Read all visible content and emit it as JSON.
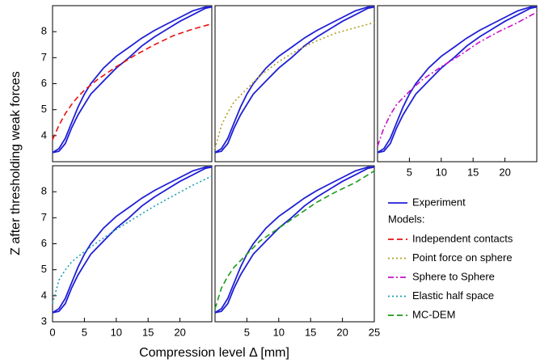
{
  "ylabel": "Z after thresholding weak forces",
  "xlabel": "Compression level Δ [mm]",
  "legend_heading": "Models:",
  "chart_data": [
    {
      "type": "line",
      "xlim": [
        0,
        25
      ],
      "ylim": [
        3,
        9
      ],
      "yticks": [
        4,
        5,
        6,
        7,
        8
      ],
      "series": [
        {
          "name": "Experiment",
          "color": "#1f1fd6",
          "style": "solid",
          "x": [
            0,
            1,
            2,
            3,
            4,
            5,
            6,
            8,
            10,
            12,
            14,
            16,
            18,
            20,
            22,
            24,
            25,
            24,
            22,
            20,
            18,
            16,
            14,
            12,
            10,
            8,
            6,
            5,
            4,
            3,
            2,
            1,
            0
          ],
          "values": [
            3.35,
            3.4,
            3.7,
            4.3,
            4.8,
            5.2,
            5.6,
            6.1,
            6.6,
            7.0,
            7.45,
            7.8,
            8.1,
            8.4,
            8.65,
            8.9,
            8.95,
            8.95,
            8.8,
            8.55,
            8.3,
            8.05,
            7.75,
            7.4,
            7.05,
            6.6,
            6.0,
            5.6,
            5.1,
            4.5,
            3.9,
            3.5,
            3.35
          ]
        },
        {
          "name": "Independent contacts",
          "color": "#e81010",
          "style": "dashed",
          "x": [
            0,
            1,
            2,
            3,
            4,
            5,
            7,
            10,
            13,
            16,
            19,
            22,
            25
          ],
          "values": [
            3.85,
            4.4,
            4.85,
            5.2,
            5.5,
            5.75,
            6.15,
            6.65,
            7.1,
            7.5,
            7.85,
            8.1,
            8.3
          ]
        }
      ]
    },
    {
      "type": "line",
      "xlim": [
        0,
        25
      ],
      "ylim": [
        3,
        9
      ],
      "series": [
        {
          "name": "Experiment",
          "color": "#1f1fd6",
          "style": "solid",
          "x": [
            0,
            1,
            2,
            3,
            4,
            5,
            6,
            8,
            10,
            12,
            14,
            16,
            18,
            20,
            22,
            24,
            25,
            24,
            22,
            20,
            18,
            16,
            14,
            12,
            10,
            8,
            6,
            5,
            4,
            3,
            2,
            1,
            0
          ],
          "values": [
            3.35,
            3.4,
            3.7,
            4.3,
            4.8,
            5.2,
            5.6,
            6.1,
            6.6,
            7.0,
            7.45,
            7.8,
            8.1,
            8.4,
            8.65,
            8.9,
            8.95,
            8.95,
            8.8,
            8.55,
            8.3,
            8.05,
            7.75,
            7.4,
            7.05,
            6.6,
            6.0,
            5.6,
            5.1,
            4.5,
            3.9,
            3.5,
            3.35
          ]
        },
        {
          "name": "Point force on sphere",
          "color": "#b0a020",
          "style": "dotted",
          "x": [
            0,
            1,
            2,
            3,
            5,
            7,
            10,
            13,
            16,
            19,
            22,
            25
          ],
          "values": [
            3.5,
            4.4,
            4.9,
            5.3,
            5.8,
            6.3,
            6.85,
            7.3,
            7.65,
            7.95,
            8.15,
            8.35
          ]
        }
      ]
    },
    {
      "type": "line",
      "xlim": [
        0,
        25
      ],
      "ylim": [
        3,
        9
      ],
      "xticks": [
        5,
        10,
        15,
        20
      ],
      "series": [
        {
          "name": "Experiment",
          "color": "#1f1fd6",
          "style": "solid",
          "x": [
            0,
            1,
            2,
            3,
            4,
            5,
            6,
            8,
            10,
            12,
            14,
            16,
            18,
            20,
            22,
            24,
            25,
            24,
            22,
            20,
            18,
            16,
            14,
            12,
            10,
            8,
            6,
            5,
            4,
            3,
            2,
            1,
            0
          ],
          "values": [
            3.35,
            3.4,
            3.7,
            4.3,
            4.8,
            5.2,
            5.6,
            6.1,
            6.6,
            7.0,
            7.45,
            7.8,
            8.1,
            8.4,
            8.65,
            8.9,
            8.95,
            8.95,
            8.8,
            8.55,
            8.3,
            8.05,
            7.75,
            7.4,
            7.05,
            6.6,
            6.0,
            5.6,
            5.1,
            4.5,
            3.9,
            3.5,
            3.35
          ]
        },
        {
          "name": "Sphere to Sphere",
          "color": "#c810c8",
          "style": "dashdot",
          "x": [
            0,
            1,
            2,
            3,
            5,
            7,
            10,
            13,
            16,
            19,
            22,
            25
          ],
          "values": [
            3.6,
            4.3,
            4.8,
            5.2,
            5.7,
            6.15,
            6.65,
            7.1,
            7.6,
            8.0,
            8.35,
            8.75
          ]
        }
      ]
    },
    {
      "type": "line",
      "xlim": [
        0,
        25
      ],
      "ylim": [
        3,
        9
      ],
      "xticks": [
        0,
        5,
        10,
        15,
        20
      ],
      "yticks": [
        3,
        4,
        5,
        6,
        7,
        8
      ],
      "series": [
        {
          "name": "Experiment",
          "color": "#1f1fd6",
          "style": "solid",
          "x": [
            0,
            1,
            2,
            3,
            4,
            5,
            6,
            8,
            10,
            12,
            14,
            16,
            18,
            20,
            22,
            24,
            25,
            24,
            22,
            20,
            18,
            16,
            14,
            12,
            10,
            8,
            6,
            5,
            4,
            3,
            2,
            1,
            0
          ],
          "values": [
            3.35,
            3.4,
            3.7,
            4.3,
            4.8,
            5.2,
            5.6,
            6.1,
            6.6,
            7.0,
            7.45,
            7.8,
            8.1,
            8.4,
            8.65,
            8.9,
            8.95,
            8.95,
            8.8,
            8.55,
            8.3,
            8.05,
            7.75,
            7.4,
            7.05,
            6.6,
            6.0,
            5.6,
            5.1,
            4.5,
            3.9,
            3.5,
            3.35
          ]
        },
        {
          "name": "Elastic half space",
          "color": "#1aa0b4",
          "style": "dotted",
          "x": [
            0,
            1,
            2,
            3,
            5,
            7,
            10,
            13,
            16,
            19,
            22,
            25
          ],
          "values": [
            3.7,
            4.6,
            5.0,
            5.3,
            5.7,
            6.05,
            6.55,
            7.0,
            7.45,
            7.85,
            8.25,
            8.6
          ]
        }
      ]
    },
    {
      "type": "line",
      "xlim": [
        0,
        25
      ],
      "ylim": [
        3,
        9
      ],
      "xticks": [
        5,
        10,
        15,
        20,
        25
      ],
      "series": [
        {
          "name": "Experiment",
          "color": "#1f1fd6",
          "style": "solid",
          "x": [
            0,
            1,
            2,
            3,
            4,
            5,
            6,
            8,
            10,
            12,
            14,
            16,
            18,
            20,
            22,
            24,
            25,
            24,
            22,
            20,
            18,
            16,
            14,
            12,
            10,
            8,
            6,
            5,
            4,
            3,
            2,
            1,
            0
          ],
          "values": [
            3.35,
            3.4,
            3.7,
            4.3,
            4.8,
            5.2,
            5.6,
            6.1,
            6.6,
            7.0,
            7.45,
            7.8,
            8.1,
            8.4,
            8.65,
            8.9,
            8.95,
            8.95,
            8.8,
            8.55,
            8.3,
            8.05,
            7.75,
            7.4,
            7.05,
            6.6,
            6.0,
            5.6,
            5.1,
            4.5,
            3.9,
            3.5,
            3.35
          ]
        },
        {
          "name": "MC-DEM",
          "color": "#1a9a1a",
          "style": "dashed",
          "x": [
            0,
            1,
            2,
            3,
            5,
            7,
            10,
            13,
            16,
            19,
            22,
            25
          ],
          "values": [
            3.5,
            4.3,
            4.75,
            5.1,
            5.6,
            6.1,
            6.6,
            7.1,
            7.6,
            8.0,
            8.35,
            8.8
          ]
        }
      ]
    }
  ]
}
